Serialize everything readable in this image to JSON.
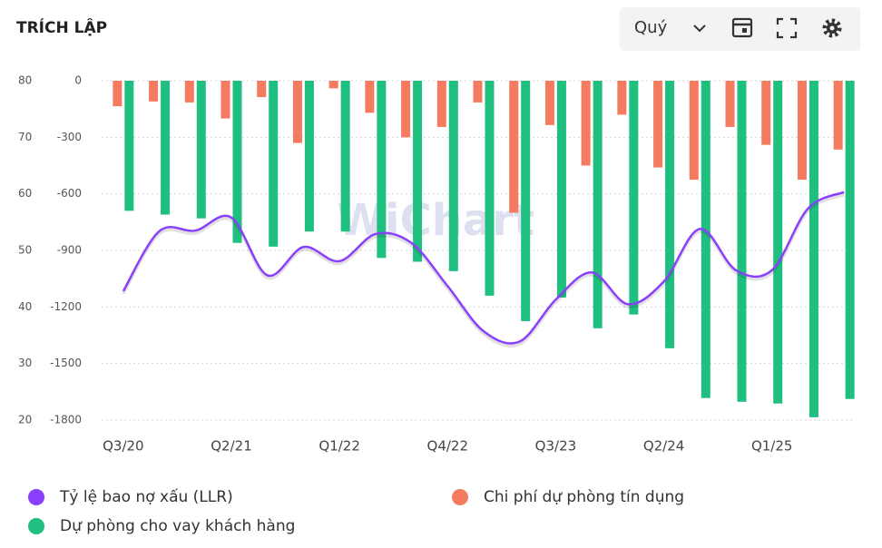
{
  "header": {
    "title": "TRÍCH LẬP",
    "period": "Quý"
  },
  "chart_data": {
    "type": "combo",
    "watermark": "WiChart",
    "categories": [
      "Q3/20",
      null,
      null,
      "Q2/21",
      null,
      null,
      "Q1/22",
      null,
      null,
      "Q4/22",
      null,
      null,
      "Q3/23",
      null,
      null,
      "Q2/24",
      null,
      null,
      "Q1/25",
      null,
      null
    ],
    "ylim": [
      20,
      80
    ],
    "yticks": [
      20,
      30,
      40,
      50,
      60,
      70,
      80
    ],
    "y2lim": [
      -1800,
      0
    ],
    "y2ticks": [
      -1800,
      -1500,
      -1200,
      -900,
      -600,
      -300,
      0
    ],
    "grid": true,
    "series": [
      {
        "name": "Tỷ lệ bao nợ xấu (LLR)",
        "type": "line",
        "color": "#8a3ffc",
        "values": [
          42.8,
          53.4,
          53.5,
          55.8,
          45.6,
          50.6,
          48.1,
          52.9,
          51.3,
          43.7,
          35.7,
          33.9,
          41.3,
          46.1,
          40.5,
          44.5,
          53.8,
          46.5,
          46.5,
          57.4,
          60.3
        ]
      },
      {
        "name": "Chi phí dự phòng tín dụng",
        "type": "bar",
        "axis": "y2",
        "color": "#f47a60",
        "values": [
          -135,
          -110,
          -115,
          -200,
          -87,
          -330,
          -40,
          -170,
          -300,
          -245,
          -115,
          -700,
          -235,
          -450,
          -180,
          -460,
          -525,
          -245,
          -340,
          -525,
          -365
        ]
      },
      {
        "name": "Dự phòng cho vay khách hàng",
        "type": "bar",
        "axis": "y2",
        "color": "#1fbf7f",
        "values": [
          -690,
          -710,
          -730,
          -860,
          -880,
          -800,
          -800,
          -940,
          -960,
          -1010,
          -1140,
          -1275,
          -1150,
          -1313,
          -1240,
          -1419,
          -1683,
          -1703,
          -1712,
          -1785,
          -1688
        ]
      }
    ]
  }
}
